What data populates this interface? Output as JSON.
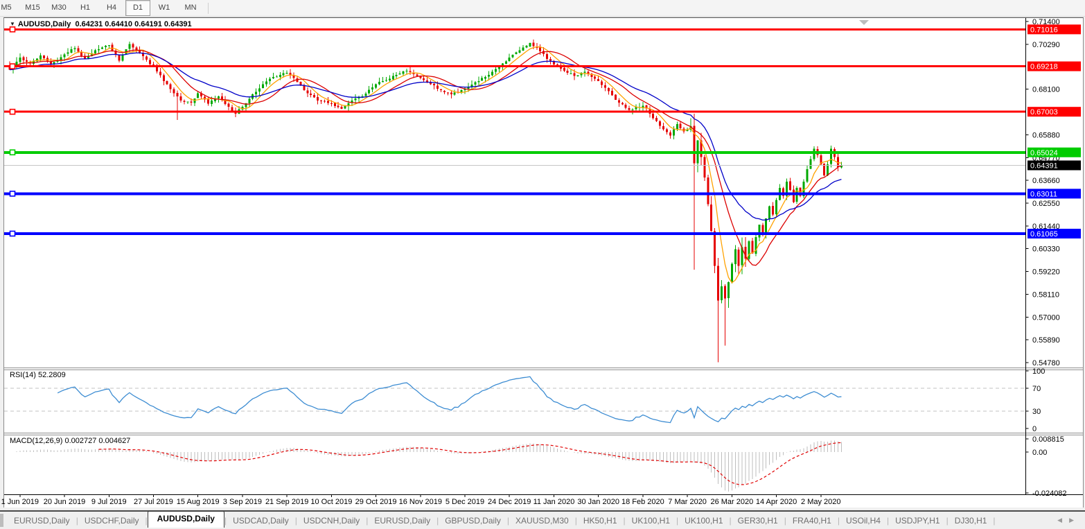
{
  "toolbar": {
    "timeframes": [
      "M5",
      "M15",
      "M30",
      "H1",
      "H4",
      "D1",
      "W1",
      "MN"
    ],
    "active_timeframe": "D1"
  },
  "chart_data": {
    "type": "candlestick",
    "title": {
      "symbol": "AUDUSD,Daily",
      "ohlc": "0.64231 0.64410 0.64191 0.64391",
      "dropdown_icon": "▼"
    },
    "symbol": "AUDUSD",
    "timeframe": "Daily",
    "ohlc_current": {
      "open": 0.64231,
      "high": 0.6441,
      "low": 0.64191,
      "close": 0.64391
    },
    "bars_count": 244,
    "colors": {
      "up_candle": "#00A800",
      "down_candle": "#E50000",
      "ma_fast": "#FFA200",
      "ma_medium": "#DC0000",
      "ma_slow": "#0000C8",
      "current_price_line": "#C6C6C6",
      "current_price_badge": "#000000",
      "rsi_line": "#3C8CD2",
      "rsi_levels": "#C0C0C0",
      "macd_histogram": "#BEBEBE",
      "macd_signal": "#E00000",
      "axis_text": "#000000"
    },
    "moving_averages": [
      {
        "name": "fast",
        "period": 6,
        "type": "sma",
        "color": "#FFA200"
      },
      {
        "name": "medium",
        "period": 13,
        "type": "sma",
        "color": "#DC0000"
      },
      {
        "name": "slow",
        "period": 25,
        "type": "ema",
        "color": "#0000C8"
      }
    ],
    "horizontal_lines": [
      {
        "price": 0.71016,
        "label": "0.71016",
        "color": "#FF0000",
        "width": 3
      },
      {
        "price": 0.69218,
        "label": "0.69218",
        "color": "#FF0000",
        "width": 3
      },
      {
        "price": 0.67003,
        "label": "0.67003",
        "color": "#FF0000",
        "width": 3
      },
      {
        "price": 0.65024,
        "label": "0.65024",
        "color": "#00CC00",
        "width": 4
      },
      {
        "price": 0.63011,
        "label": "0.63011",
        "color": "#0000FF",
        "width": 4
      },
      {
        "price": 0.61065,
        "label": "0.61065",
        "color": "#0000FF",
        "width": 4
      }
    ],
    "current_price": {
      "price": 0.64391,
      "label": "0.64391"
    },
    "y_ticks": [
      "0.71400",
      "0.70290",
      "0.68100",
      "0.65880",
      "0.64770",
      "0.63660",
      "0.62550",
      "0.61440",
      "0.60330",
      "0.59220",
      "0.58110",
      "0.57000",
      "0.55890",
      "0.54780"
    ],
    "x_labels": [
      "1 Jun 2019",
      "20 Jun 2019",
      "9 Jul 2019",
      "27 Jul 2019",
      "15 Aug 2019",
      "3 Sep 2019",
      "21 Sep 2019",
      "10 Oct 2019",
      "29 Oct 2019",
      "16 Nov 2019",
      "5 Dec 2019",
      "24 Dec 2019",
      "11 Jan 2020",
      "30 Jan 2020",
      "18 Feb 2020",
      "7 Mar 2020",
      "26 Mar 2020",
      "14 Apr 2020",
      "2 May 2020"
    ],
    "price_anchors": [
      [
        0,
        0.6905
      ],
      [
        3,
        0.6965
      ],
      [
        6,
        0.6935
      ],
      [
        9,
        0.6975
      ],
      [
        12,
        0.693
      ],
      [
        16,
        0.698
      ],
      [
        19,
        0.701
      ],
      [
        22,
        0.696
      ],
      [
        25,
        0.7
      ],
      [
        29,
        0.7025
      ],
      [
        32,
        0.695
      ],
      [
        35,
        0.703
      ],
      [
        38,
        0.6985
      ],
      [
        42,
        0.692
      ],
      [
        45,
        0.685
      ],
      [
        48,
        0.679
      ],
      [
        50,
        0.6755
      ],
      [
        53,
        0.6745
      ],
      [
        55,
        0.679
      ],
      [
        58,
        0.674
      ],
      [
        61,
        0.6775
      ],
      [
        64,
        0.6725
      ],
      [
        66,
        0.669
      ],
      [
        68,
        0.6725
      ],
      [
        71,
        0.6785
      ],
      [
        74,
        0.6835
      ],
      [
        77,
        0.687
      ],
      [
        81,
        0.689
      ],
      [
        84,
        0.6845
      ],
      [
        87,
        0.679
      ],
      [
        90,
        0.6755
      ],
      [
        94,
        0.674
      ],
      [
        97,
        0.6715
      ],
      [
        100,
        0.6755
      ],
      [
        103,
        0.6775
      ],
      [
        107,
        0.6835
      ],
      [
        110,
        0.6855
      ],
      [
        113,
        0.688
      ],
      [
        116,
        0.69
      ],
      [
        120,
        0.6865
      ],
      [
        123,
        0.6835
      ],
      [
        126,
        0.6805
      ],
      [
        129,
        0.6785
      ],
      [
        133,
        0.681
      ],
      [
        136,
        0.6845
      ],
      [
        139,
        0.687
      ],
      [
        143,
        0.692
      ],
      [
        146,
        0.6965
      ],
      [
        149,
        0.7
      ],
      [
        152,
        0.7035
      ],
      [
        155,
        0.6995
      ],
      [
        159,
        0.693
      ],
      [
        162,
        0.69
      ],
      [
        165,
        0.6875
      ],
      [
        168,
        0.6895
      ],
      [
        172,
        0.685
      ],
      [
        175,
        0.68
      ],
      [
        178,
        0.6745
      ],
      [
        181,
        0.671
      ],
      [
        185,
        0.673
      ],
      [
        187,
        0.669
      ],
      [
        189,
        0.6655
      ],
      [
        191,
        0.6615
      ],
      [
        193,
        0.6585
      ],
      [
        195,
        0.664
      ],
      [
        197,
        0.6605
      ],
      [
        199,
        0.663
      ],
      [
        200,
        0.645
      ],
      [
        201,
        0.656
      ],
      [
        202,
        0.648
      ],
      [
        203,
        0.638
      ],
      [
        204,
        0.625
      ],
      [
        205,
        0.612
      ],
      [
        206,
        0.595
      ],
      [
        207,
        0.578
      ],
      [
        208,
        0.585
      ],
      [
        209,
        0.579
      ],
      [
        210,
        0.587
      ],
      [
        211,
        0.596
      ],
      [
        212,
        0.603
      ],
      [
        213,
        0.595
      ],
      [
        214,
        0.604
      ],
      [
        215,
        0.5985
      ],
      [
        216,
        0.607
      ],
      [
        217,
        0.601
      ],
      [
        218,
        0.609
      ],
      [
        219,
        0.615
      ],
      [
        220,
        0.61
      ],
      [
        221,
        0.618
      ],
      [
        222,
        0.624
      ],
      [
        223,
        0.62
      ],
      [
        224,
        0.627
      ],
      [
        225,
        0.633
      ],
      [
        226,
        0.629
      ],
      [
        227,
        0.636
      ],
      [
        228,
        0.632
      ],
      [
        229,
        0.626
      ],
      [
        230,
        0.633
      ],
      [
        231,
        0.629
      ],
      [
        232,
        0.636
      ],
      [
        233,
        0.642
      ],
      [
        234,
        0.647
      ],
      [
        235,
        0.652
      ],
      [
        236,
        0.649
      ],
      [
        237,
        0.6445
      ],
      [
        238,
        0.639
      ],
      [
        239,
        0.6445
      ],
      [
        240,
        0.652
      ],
      [
        241,
        0.648
      ],
      [
        242,
        0.643
      ],
      [
        243,
        0.64391
      ]
    ],
    "special_wicks": [
      {
        "i": 49,
        "low": 0.666
      },
      {
        "i": 200,
        "high": 0.669,
        "low": 0.593
      },
      {
        "i": 207,
        "low": 0.548
      },
      {
        "i": 209,
        "low": 0.556
      }
    ],
    "indicators": {
      "rsi": {
        "name": "RSI(14)",
        "value": "52.2809",
        "period": 14,
        "levels": [
          "100",
          "70",
          "30",
          "0"
        ]
      },
      "macd": {
        "name": "MACD(12,26,9)",
        "values": "0.002727 0.004627",
        "fast": 12,
        "slow": 26,
        "signal": 9,
        "y_ticks": [
          "0.008815",
          "0.00",
          "-0.024082"
        ]
      }
    }
  },
  "tabs": {
    "items": [
      "EURUSD,Daily",
      "USDCHF,Daily",
      "AUDUSD,Daily",
      "USDCAD,Daily",
      "USDCNH,Daily",
      "EURUSD,Daily",
      "GBPUSD,Daily",
      "XAUUSD,M30",
      "HK50,H1",
      "UK100,H1",
      "UK100,H1",
      "GER30,H1",
      "FRA40,H1",
      "USOil,H4",
      "USDJPY,H1",
      "DJ30,H1"
    ],
    "active_index": 2,
    "separator": "|"
  },
  "nav": {
    "left_arrow": "◀",
    "right_arrow": "▶"
  }
}
